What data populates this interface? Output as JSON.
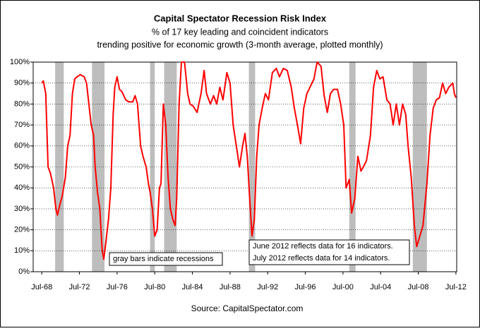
{
  "chart_data": {
    "type": "line",
    "title": "Capital Spectator Recession Risk Index",
    "subtitle": [
      "% of 17 key leading and coincident indicators",
      "trending positive for economic growth (3-month average, plotted monthly)"
    ],
    "source": "Source: CapitalSpectator.com",
    "annotations": [
      "gray bars indicate recessions",
      "June 2012 reflects data for 16 indicators.",
      "July 2012 reflects data for 14 indicators."
    ],
    "xlim": [
      "1967-08",
      "2012-08"
    ],
    "xticks": [
      {
        "value": "1968-07",
        "label": "Jul-68"
      },
      {
        "value": "1972-07",
        "label": "Jul-72"
      },
      {
        "value": "1976-07",
        "label": "Jul-76"
      },
      {
        "value": "1980-07",
        "label": "Jul-80"
      },
      {
        "value": "1984-07",
        "label": "Jul-84"
      },
      {
        "value": "1988-07",
        "label": "Jul-88"
      },
      {
        "value": "1992-07",
        "label": "Jul-92"
      },
      {
        "value": "1996-07",
        "label": "Jul-96"
      },
      {
        "value": "2000-07",
        "label": "Jul-00"
      },
      {
        "value": "2004-07",
        "label": "Jul-04"
      },
      {
        "value": "2008-07",
        "label": "Jul-08"
      },
      {
        "value": "2012-07",
        "label": "Jul-12"
      }
    ],
    "ylim": [
      0,
      100
    ],
    "yticks": [
      {
        "value": 0,
        "label": "0%"
      },
      {
        "value": 10,
        "label": "10%"
      },
      {
        "value": 20,
        "label": "20%"
      },
      {
        "value": 30,
        "label": "30%"
      },
      {
        "value": 40,
        "label": "40%"
      },
      {
        "value": 50,
        "label": "50%"
      },
      {
        "value": 60,
        "label": "60%"
      },
      {
        "value": 70,
        "label": "70%"
      },
      {
        "value": 80,
        "label": "80%"
      },
      {
        "value": 90,
        "label": "90%"
      },
      {
        "value": 100,
        "label": "100%"
      }
    ],
    "grid": true,
    "recessions": [
      {
        "start": "1969-12",
        "end": "1970-11"
      },
      {
        "start": "1973-11",
        "end": "1975-03"
      },
      {
        "start": "1980-01",
        "end": "1980-07"
      },
      {
        "start": "1981-07",
        "end": "1982-11"
      },
      {
        "start": "1990-07",
        "end": "1991-03"
      },
      {
        "start": "2001-03",
        "end": "2001-11"
      },
      {
        "start": "2007-12",
        "end": "2009-06"
      }
    ],
    "recession_color": "#bdbdbd",
    "series": [
      {
        "name": "Recession Risk Index",
        "color": "#ff0000",
        "x": [
          "1968-07",
          "1968-09",
          "1968-12",
          "1969-03",
          "1969-06",
          "1969-10",
          "1970-01",
          "1970-03",
          "1970-06",
          "1970-09",
          "1971-01",
          "1971-04",
          "1971-07",
          "1971-10",
          "1972-01",
          "1972-04",
          "1972-08",
          "1973-01",
          "1973-04",
          "1973-07",
          "1973-10",
          "1974-01",
          "1974-03",
          "1974-06",
          "1974-09",
          "1974-12",
          "1975-02",
          "1975-05",
          "1975-08",
          "1975-11",
          "1976-02",
          "1976-04",
          "1976-07",
          "1976-10",
          "1977-01",
          "1977-06",
          "1977-10",
          "1978-03",
          "1978-06",
          "1978-09",
          "1979-01",
          "1979-04",
          "1979-08",
          "1979-11",
          "1980-01",
          "1980-04",
          "1980-07",
          "1980-10",
          "1981-01",
          "1981-03",
          "1981-06",
          "1981-09",
          "1981-12",
          "1982-03",
          "1982-06",
          "1982-09",
          "1982-11",
          "1983-02",
          "1983-05",
          "1983-09",
          "1984-01",
          "1984-04",
          "1984-08",
          "1985-01",
          "1985-06",
          "1985-10",
          "1986-01",
          "1986-06",
          "1986-10",
          "1987-02",
          "1987-06",
          "1987-10",
          "1988-03",
          "1988-07",
          "1988-11",
          "1989-03",
          "1989-07",
          "1989-11",
          "1990-02",
          "1990-05",
          "1990-08",
          "1990-11",
          "1991-02",
          "1991-05",
          "1991-08",
          "1991-12",
          "1992-04",
          "1992-08",
          "1993-01",
          "1993-06",
          "1993-10",
          "1994-03",
          "1994-08",
          "1995-01",
          "1995-05",
          "1995-09",
          "1996-01",
          "1996-05",
          "1996-09",
          "1997-01",
          "1997-06",
          "1997-10",
          "1998-03",
          "1998-07",
          "1998-11",
          "1999-03",
          "1999-07",
          "1999-12",
          "2000-04",
          "2000-08",
          "2000-11",
          "2001-03",
          "2001-06",
          "2001-10",
          "2002-02",
          "2002-06",
          "2002-09",
          "2003-01",
          "2003-06",
          "2003-10",
          "2004-02",
          "2004-06",
          "2004-10",
          "2005-03",
          "2005-07",
          "2005-11",
          "2006-03",
          "2006-07",
          "2006-11",
          "2007-03",
          "2007-06",
          "2007-10",
          "2008-02",
          "2008-05",
          "2008-09",
          "2009-01",
          "2009-06",
          "2009-10",
          "2010-02",
          "2010-06",
          "2010-10",
          "2011-02",
          "2011-06",
          "2011-10",
          "2012-03",
          "2012-05",
          "2012-07"
        ],
        "values": [
          90,
          91,
          85,
          50,
          47,
          40,
          30,
          27,
          32,
          36,
          45,
          60,
          65,
          85,
          92,
          93,
          94,
          93,
          90,
          80,
          70,
          65,
          50,
          38,
          30,
          10,
          6,
          15,
          25,
          40,
          75,
          88,
          93,
          87,
          86,
          82,
          81,
          81,
          84,
          80,
          60,
          55,
          50,
          42,
          38,
          30,
          17,
          20,
          40,
          42,
          80,
          70,
          45,
          30,
          25,
          22,
          35,
          80,
          100,
          100,
          85,
          80,
          79,
          76,
          85,
          96,
          85,
          80,
          84,
          80,
          88,
          82,
          95,
          90,
          70,
          60,
          50,
          60,
          66,
          55,
          35,
          17,
          25,
          55,
          70,
          78,
          85,
          82,
          95,
          97,
          93,
          97,
          96,
          88,
          78,
          70,
          61,
          78,
          85,
          88,
          92,
          100,
          98,
          84,
          76,
          85,
          87,
          87,
          80,
          70,
          40,
          44,
          28,
          35,
          55,
          48,
          50,
          53,
          65,
          88,
          96,
          92,
          93,
          82,
          80,
          70,
          80,
          70,
          80,
          75,
          60,
          45,
          22,
          12,
          17,
          22,
          42,
          65,
          78,
          82,
          83,
          90,
          85,
          88,
          90,
          85,
          83
        ]
      }
    ]
  }
}
